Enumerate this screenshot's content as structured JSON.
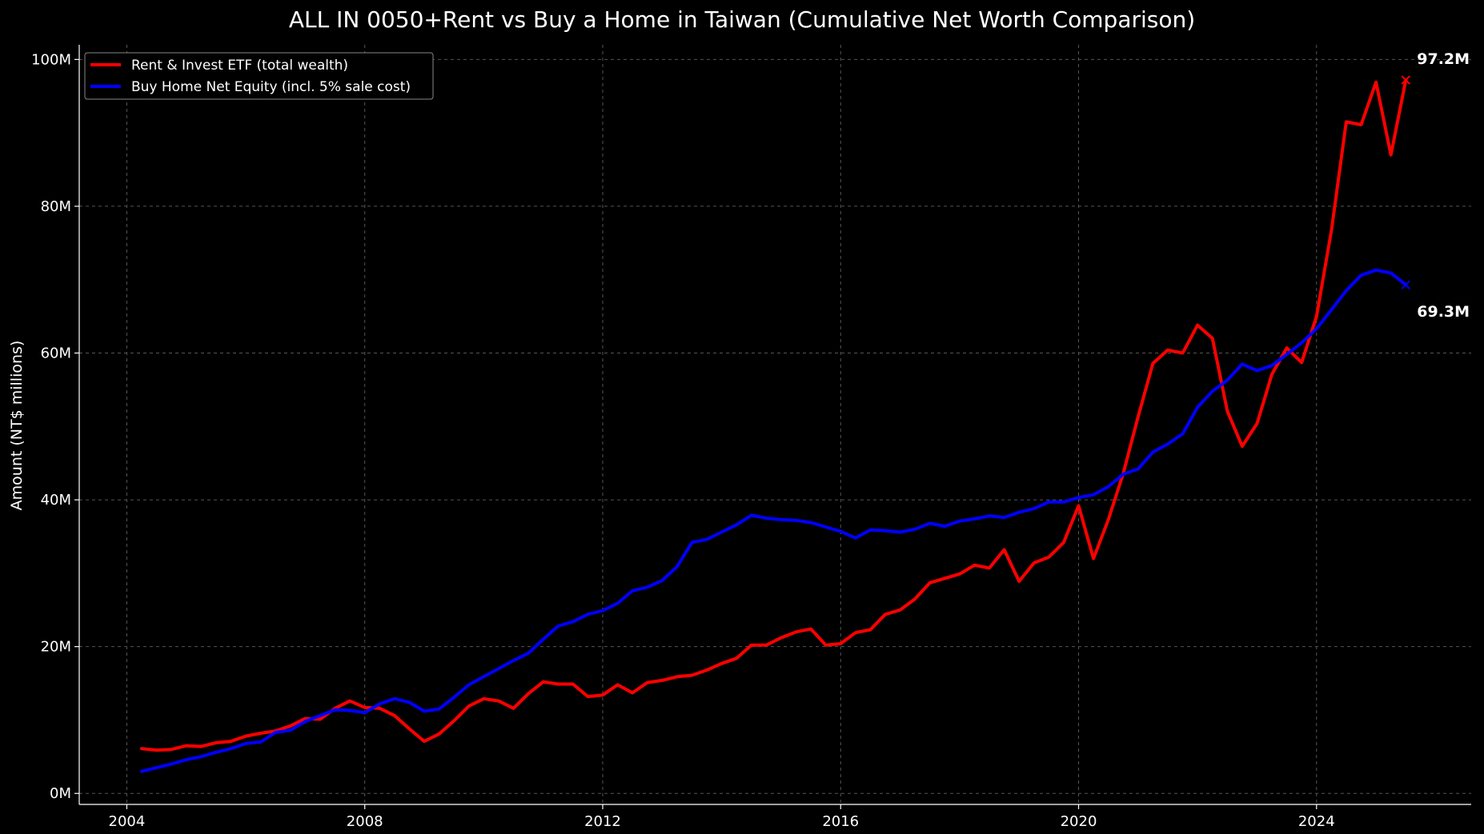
{
  "chart_data": {
    "type": "line",
    "title": "ALL IN 0050+Rent vs Buy a Home in Taiwan (Cumulative Net Worth Comparison)",
    "xlabel": "",
    "ylabel": "Amount (NT$ millions)",
    "xlim": [
      2003.2,
      2026.6
    ],
    "ylim": [
      -1.5,
      102
    ],
    "x_ticks": [
      2004,
      2008,
      2012,
      2016,
      2020,
      2024
    ],
    "x_tick_labels": [
      "2004",
      "2008",
      "2012",
      "2016",
      "2020",
      "2024"
    ],
    "y_ticks": [
      0,
      20,
      40,
      60,
      80,
      100
    ],
    "y_tick_labels": [
      "0M",
      "20M",
      "40M",
      "60M",
      "80M",
      "100M"
    ],
    "grid": true,
    "legend_position": "top-left",
    "end_labels": [
      {
        "series": 0,
        "text": "97.2M",
        "x": 2025.5,
        "y": 97.2
      },
      {
        "series": 1,
        "text": "69.3M",
        "x": 2025.5,
        "y": 69.3
      }
    ],
    "series": [
      {
        "name": "Rent & Invest ETF (total wealth)",
        "color": "#ff0000",
        "marker_end": "x",
        "points": [
          [
            2004.25,
            6.1
          ],
          [
            2004.5,
            5.9
          ],
          [
            2004.75,
            6.0
          ],
          [
            2005.0,
            6.5
          ],
          [
            2005.25,
            6.4
          ],
          [
            2005.5,
            6.9
          ],
          [
            2005.75,
            7.1
          ],
          [
            2006.0,
            7.8
          ],
          [
            2006.25,
            8.2
          ],
          [
            2006.5,
            8.5
          ],
          [
            2006.75,
            9.2
          ],
          [
            2007.0,
            10.2
          ],
          [
            2007.25,
            10.1
          ],
          [
            2007.5,
            11.6
          ],
          [
            2007.75,
            12.6
          ],
          [
            2008.0,
            11.7
          ],
          [
            2008.25,
            11.6
          ],
          [
            2008.5,
            10.6
          ],
          [
            2008.75,
            8.8
          ],
          [
            2009.0,
            7.1
          ],
          [
            2009.25,
            8.1
          ],
          [
            2009.5,
            9.9
          ],
          [
            2009.75,
            11.9
          ],
          [
            2010.0,
            12.9
          ],
          [
            2010.25,
            12.6
          ],
          [
            2010.5,
            11.6
          ],
          [
            2010.75,
            13.6
          ],
          [
            2011.0,
            15.2
          ],
          [
            2011.25,
            14.9
          ],
          [
            2011.5,
            14.9
          ],
          [
            2011.75,
            13.2
          ],
          [
            2012.0,
            13.4
          ],
          [
            2012.25,
            14.8
          ],
          [
            2012.5,
            13.7
          ],
          [
            2012.75,
            15.1
          ],
          [
            2013.0,
            15.4
          ],
          [
            2013.25,
            15.9
          ],
          [
            2013.5,
            16.1
          ],
          [
            2013.75,
            16.8
          ],
          [
            2014.0,
            17.7
          ],
          [
            2014.25,
            18.4
          ],
          [
            2014.5,
            20.2
          ],
          [
            2014.75,
            20.2
          ],
          [
            2015.0,
            21.2
          ],
          [
            2015.25,
            22.0
          ],
          [
            2015.5,
            22.4
          ],
          [
            2015.75,
            20.2
          ],
          [
            2016.0,
            20.4
          ],
          [
            2016.25,
            21.9
          ],
          [
            2016.5,
            22.3
          ],
          [
            2016.75,
            24.4
          ],
          [
            2017.0,
            25.0
          ],
          [
            2017.25,
            26.5
          ],
          [
            2017.5,
            28.7
          ],
          [
            2017.75,
            29.3
          ],
          [
            2018.0,
            29.9
          ],
          [
            2018.25,
            31.1
          ],
          [
            2018.5,
            30.7
          ],
          [
            2018.75,
            33.2
          ],
          [
            2019.0,
            28.9
          ],
          [
            2019.25,
            31.4
          ],
          [
            2019.5,
            32.2
          ],
          [
            2019.75,
            34.2
          ],
          [
            2020.0,
            39.2
          ],
          [
            2020.25,
            32.0
          ],
          [
            2020.5,
            37.3
          ],
          [
            2020.75,
            43.6
          ],
          [
            2021.0,
            51.3
          ],
          [
            2021.25,
            58.6
          ],
          [
            2021.5,
            60.4
          ],
          [
            2021.75,
            60.0
          ],
          [
            2022.0,
            63.8
          ],
          [
            2022.25,
            62.0
          ],
          [
            2022.5,
            52.1
          ],
          [
            2022.75,
            47.3
          ],
          [
            2023.0,
            50.4
          ],
          [
            2023.25,
            57.1
          ],
          [
            2023.5,
            60.7
          ],
          [
            2023.75,
            58.7
          ],
          [
            2024.0,
            65.0
          ],
          [
            2024.25,
            76.7
          ],
          [
            2024.5,
            91.5
          ],
          [
            2024.75,
            91.1
          ],
          [
            2025.0,
            96.9
          ],
          [
            2025.25,
            87.0
          ],
          [
            2025.5,
            97.2
          ]
        ]
      },
      {
        "name": "Buy Home Net Equity (incl. 5% sale cost)",
        "color": "#0000ff",
        "marker_end": "x",
        "points": [
          [
            2004.25,
            3.0
          ],
          [
            2004.5,
            3.5
          ],
          [
            2004.75,
            4.0
          ],
          [
            2005.0,
            4.6
          ],
          [
            2005.25,
            5.0
          ],
          [
            2005.5,
            5.6
          ],
          [
            2005.75,
            6.1
          ],
          [
            2006.0,
            6.8
          ],
          [
            2006.25,
            7.0
          ],
          [
            2006.5,
            8.3
          ],
          [
            2006.75,
            8.6
          ],
          [
            2007.0,
            9.8
          ],
          [
            2007.25,
            10.6
          ],
          [
            2007.5,
            11.4
          ],
          [
            2007.75,
            11.3
          ],
          [
            2008.0,
            11.0
          ],
          [
            2008.25,
            12.2
          ],
          [
            2008.5,
            12.9
          ],
          [
            2008.75,
            12.4
          ],
          [
            2009.0,
            11.2
          ],
          [
            2009.25,
            11.5
          ],
          [
            2009.5,
            13.1
          ],
          [
            2009.75,
            14.8
          ],
          [
            2010.0,
            15.9
          ],
          [
            2010.25,
            17.0
          ],
          [
            2010.5,
            18.1
          ],
          [
            2010.75,
            19.1
          ],
          [
            2011.0,
            21.0
          ],
          [
            2011.25,
            22.8
          ],
          [
            2011.5,
            23.4
          ],
          [
            2011.75,
            24.4
          ],
          [
            2012.0,
            24.9
          ],
          [
            2012.25,
            25.9
          ],
          [
            2012.5,
            27.6
          ],
          [
            2012.75,
            28.1
          ],
          [
            2013.0,
            29.0
          ],
          [
            2013.25,
            30.9
          ],
          [
            2013.5,
            34.2
          ],
          [
            2013.75,
            34.6
          ],
          [
            2014.0,
            35.6
          ],
          [
            2014.25,
            36.6
          ],
          [
            2014.5,
            37.9
          ],
          [
            2014.75,
            37.5
          ],
          [
            2015.0,
            37.3
          ],
          [
            2015.25,
            37.2
          ],
          [
            2015.5,
            36.9
          ],
          [
            2015.75,
            36.3
          ],
          [
            2016.0,
            35.7
          ],
          [
            2016.25,
            34.8
          ],
          [
            2016.5,
            35.9
          ],
          [
            2016.75,
            35.8
          ],
          [
            2017.0,
            35.6
          ],
          [
            2017.25,
            36.0
          ],
          [
            2017.5,
            36.8
          ],
          [
            2017.75,
            36.4
          ],
          [
            2018.0,
            37.1
          ],
          [
            2018.25,
            37.4
          ],
          [
            2018.5,
            37.8
          ],
          [
            2018.75,
            37.6
          ],
          [
            2019.0,
            38.3
          ],
          [
            2019.25,
            38.8
          ],
          [
            2019.5,
            39.7
          ],
          [
            2019.75,
            39.7
          ],
          [
            2020.0,
            40.3
          ],
          [
            2020.25,
            40.7
          ],
          [
            2020.5,
            41.8
          ],
          [
            2020.75,
            43.5
          ],
          [
            2021.0,
            44.2
          ],
          [
            2021.25,
            46.5
          ],
          [
            2021.5,
            47.6
          ],
          [
            2021.75,
            49.0
          ],
          [
            2022.0,
            52.6
          ],
          [
            2022.25,
            54.8
          ],
          [
            2022.5,
            56.3
          ],
          [
            2022.75,
            58.5
          ],
          [
            2023.0,
            57.6
          ],
          [
            2023.25,
            58.3
          ],
          [
            2023.5,
            59.8
          ],
          [
            2023.75,
            61.4
          ],
          [
            2024.0,
            63.3
          ],
          [
            2024.25,
            65.9
          ],
          [
            2024.5,
            68.5
          ],
          [
            2024.75,
            70.6
          ],
          [
            2025.0,
            71.3
          ],
          [
            2025.25,
            70.9
          ],
          [
            2025.5,
            69.3
          ]
        ]
      }
    ]
  }
}
